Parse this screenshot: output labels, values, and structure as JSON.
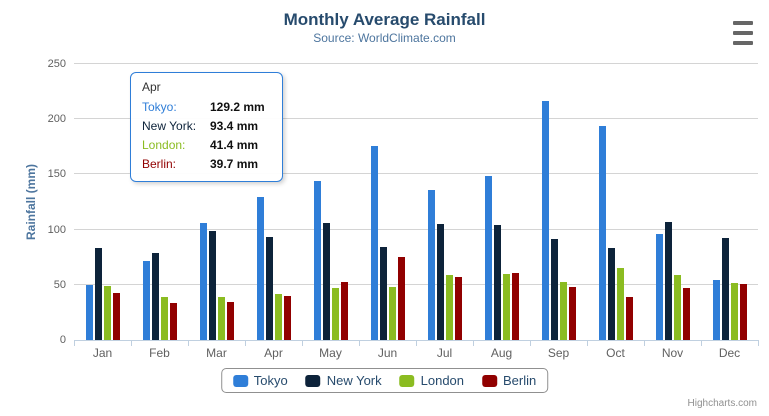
{
  "chart": {
    "credits": "Highcharts.com"
  },
  "icons": {
    "export_menu": "hamburger-menu"
  },
  "colors": {
    "title": "#274b6d",
    "subtitle": "#4d759e",
    "axis_title": "#4d759e",
    "axis_labels": "#606060",
    "grid_line": "#d4d4d4",
    "axis_line": "#c0d0e0",
    "legend_text": "#274b6d",
    "credits_text": "#909090",
    "tooltip_border": "#2f7ed8"
  },
  "chart_data": {
    "type": "bar",
    "title": "Monthly Average Rainfall",
    "subtitle": "Source: WorldClimate.com",
    "xlabel": "",
    "ylabel": "Rainfall (mm)",
    "ylim": [
      0,
      250
    ],
    "yticks": [
      0,
      50,
      100,
      150,
      200,
      250
    ],
    "ytick_labels": [
      "0",
      "50",
      "100",
      "150",
      "200",
      "250"
    ],
    "grid": true,
    "legend_position": "bottom",
    "categories": [
      "Jan",
      "Feb",
      "Mar",
      "Apr",
      "May",
      "Jun",
      "Jul",
      "Aug",
      "Sep",
      "Oct",
      "Nov",
      "Dec"
    ],
    "series": [
      {
        "name": "Tokyo",
        "color": "#2f7ed8",
        "values": [
          49.9,
          71.5,
          106.4,
          129.2,
          144.0,
          176.0,
          135.6,
          148.5,
          216.4,
          194.1,
          95.6,
          54.4
        ]
      },
      {
        "name": "New York",
        "color": "#0d233a",
        "values": [
          83.6,
          78.8,
          98.5,
          93.4,
          106.0,
          84.5,
          105.0,
          104.3,
          91.2,
          83.5,
          106.6,
          92.3
        ]
      },
      {
        "name": "London",
        "color": "#8bbc21",
        "values": [
          48.9,
          38.8,
          39.3,
          41.4,
          47.0,
          48.3,
          59.0,
          59.6,
          52.4,
          65.2,
          59.3,
          51.2
        ]
      },
      {
        "name": "Berlin",
        "color": "#910000",
        "values": [
          42.4,
          33.2,
          34.5,
          39.7,
          52.6,
          75.5,
          57.4,
          60.4,
          47.6,
          39.1,
          46.8,
          51.1
        ]
      }
    ]
  },
  "tooltip": {
    "category": "Apr",
    "rows": [
      {
        "label": "Tokyo:",
        "color": "#2f7ed8",
        "value": "129.2 mm"
      },
      {
        "label": "New York:",
        "color": "#0d233a",
        "value": "93.4 mm"
      },
      {
        "label": "London:",
        "color": "#8bbc21",
        "value": "41.4 mm"
      },
      {
        "label": "Berlin:",
        "color": "#910000",
        "value": "39.7 mm"
      }
    ]
  }
}
